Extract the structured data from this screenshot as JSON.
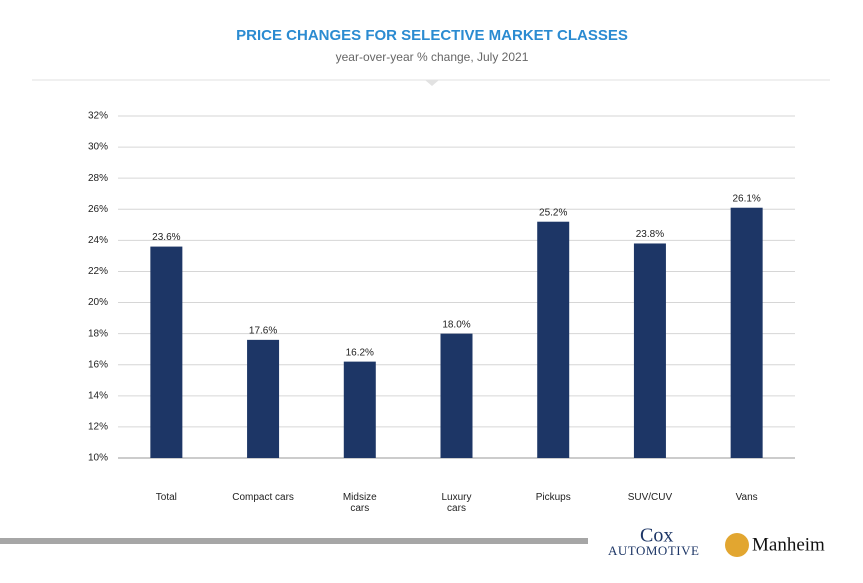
{
  "chart_data": {
    "type": "bar",
    "title": "PRICE CHANGES FOR SELECTIVE MARKET CLASSES",
    "subtitle": "year-over-year % change, July 2021",
    "categories": [
      "Total",
      "Compact cars",
      "Midsize\ncars",
      "Luxury\ncars",
      "Pickups",
      "SUV/CUV",
      "Vans"
    ],
    "values": [
      23.6,
      17.6,
      16.2,
      18.0,
      25.2,
      23.8,
      26.1
    ],
    "value_labels": [
      "23.6%",
      "17.6%",
      "16.2%",
      "18.0%",
      "25.2%",
      "23.8%",
      "26.1%"
    ],
    "color": "#1d3666",
    "ylim": [
      10,
      32
    ],
    "yticks": [
      {
        "value": 10,
        "label": "10%"
      },
      {
        "value": 12,
        "label": "12%"
      },
      {
        "value": 14,
        "label": "14%"
      },
      {
        "value": 16,
        "label": "16%"
      },
      {
        "value": 18,
        "label": "18%"
      },
      {
        "value": 20,
        "label": "20%"
      },
      {
        "value": 22,
        "label": "22%"
      },
      {
        "value": 24,
        "label": "24%"
      },
      {
        "value": 26,
        "label": "26%"
      },
      {
        "value": 28,
        "label": "28%"
      },
      {
        "value": 30,
        "label": "30%"
      },
      {
        "value": 32,
        "label": "32%"
      }
    ],
    "grid": true
  },
  "footer": {
    "logos": [
      "Cox",
      "AUTOMOTIVE",
      "Manheim"
    ]
  }
}
